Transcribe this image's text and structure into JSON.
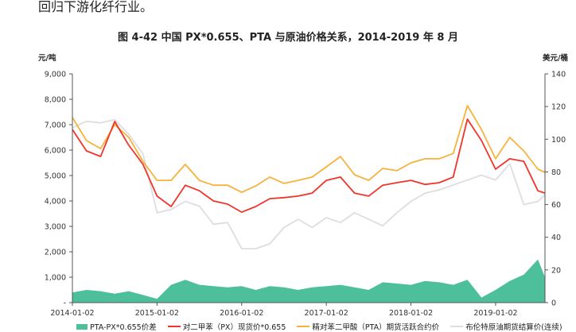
{
  "document": {
    "intro_text": "回归下游化纤行业。",
    "figure_title": "图  4-42  中国 PX*0.655、PTA 与原油价格关系，2014-2019 年 8 月"
  },
  "chart_data": {
    "type": "line",
    "title": "图  4-42  中国 PX*0.655、PTA 与原油价格关系，2014-2019 年 8 月",
    "y_left_label": "元/吨",
    "y_right_label": "美元/桶",
    "y_left_lim": [
      0,
      9000
    ],
    "y_right_lim": [
      0,
      140
    ],
    "y_left_ticks": [
      "-",
      "1,000",
      "2,000",
      "3,000",
      "4,000",
      "5,000",
      "6,000",
      "7,000",
      "8,000",
      "9,000"
    ],
    "y_right_ticks": [
      "0",
      "20",
      "40",
      "60",
      "80",
      "100",
      "120",
      "140"
    ],
    "x_ticks": [
      "2014-01-02",
      "2015-01-02",
      "2016-01-02",
      "2017-01-02",
      "2018-01-02",
      "2019-01-02"
    ],
    "x_range": [
      "2014-01",
      "2019-08"
    ],
    "grid": false,
    "legend_position": "bottom",
    "x": [
      "2014-01",
      "2014-03",
      "2014-05",
      "2014-07",
      "2014-09",
      "2014-11",
      "2015-01",
      "2015-03",
      "2015-05",
      "2015-07",
      "2015-09",
      "2015-11",
      "2016-01",
      "2016-03",
      "2016-05",
      "2016-07",
      "2016-09",
      "2016-11",
      "2017-01",
      "2017-03",
      "2017-05",
      "2017-07",
      "2017-09",
      "2017-11",
      "2018-01",
      "2018-03",
      "2018-05",
      "2018-07",
      "2018-09",
      "2018-11",
      "2019-01",
      "2019-03",
      "2019-05",
      "2019-07",
      "2019-08"
    ],
    "series": [
      {
        "name": "PTA-PX*0.655价差",
        "type": "area",
        "axis": "left",
        "color": "#4dbf9a",
        "values": [
          400,
          500,
          450,
          350,
          450,
          300,
          150,
          700,
          900,
          700,
          650,
          600,
          650,
          500,
          650,
          600,
          500,
          600,
          650,
          700,
          600,
          500,
          800,
          750,
          700,
          850,
          800,
          700,
          900,
          200,
          500,
          850,
          1100,
          1700,
          1000
        ]
      },
      {
        "name": "对二甲苯（PX）现货价*0.655",
        "type": "line",
        "axis": "left",
        "color": "#f0352a",
        "values": [
          6810,
          5970,
          5750,
          7125,
          6190,
          5440,
          4190,
          3780,
          4620,
          4400,
          4000,
          3875,
          3560,
          3780,
          4090,
          4130,
          4190,
          4310,
          4810,
          4940,
          4310,
          4190,
          4620,
          4720,
          4810,
          4650,
          4720,
          4940,
          7220,
          6375,
          5250,
          5660,
          5560,
          4400,
          4310
        ]
      },
      {
        "name": "精对苯二甲酸（PTA）期货活跃合约价",
        "type": "line",
        "axis": "left",
        "color": "#f7b23b",
        "values": [
          7280,
          6375,
          6060,
          7000,
          6500,
          5560,
          4810,
          4810,
          5440,
          4810,
          4620,
          4620,
          4340,
          4590,
          4940,
          4690,
          4810,
          4940,
          5340,
          5750,
          5030,
          4810,
          5280,
          5190,
          5500,
          5660,
          5660,
          5870,
          7750,
          6810,
          5660,
          6500,
          5970,
          5250,
          5125
        ]
      },
      {
        "name": "布伦特原油期货结算价(连续)",
        "type": "line",
        "axis": "right",
        "color": "#dedede",
        "values": [
          107,
          111,
          110,
          112,
          103,
          91,
          55,
          57,
          62,
          59,
          48,
          49,
          33,
          33,
          36,
          46,
          51,
          46,
          52,
          49,
          55,
          51,
          47,
          55,
          62,
          67,
          69,
          72,
          75,
          78,
          75,
          85,
          60,
          62,
          66
        ]
      }
    ]
  }
}
